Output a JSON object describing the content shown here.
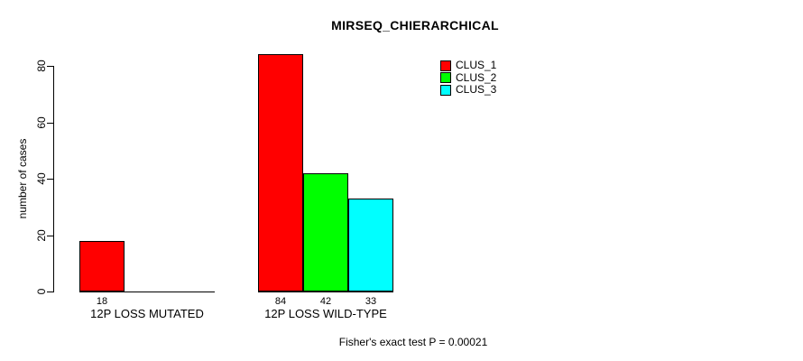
{
  "chart_data": {
    "type": "bar",
    "title": "MIRSEQ_CHIERARCHICAL",
    "ylabel": "number of cases",
    "xlabel": "",
    "yticks": [
      0,
      20,
      40,
      60,
      80
    ],
    "ylim": [
      0,
      84
    ],
    "grid": false,
    "legend_position": "top-right",
    "categories": [
      "12P LOSS MUTATED",
      "12P LOSS WILD-TYPE"
    ],
    "series": [
      {
        "name": "CLUS_1",
        "color": "#ff0000",
        "values": [
          18,
          84
        ]
      },
      {
        "name": "CLUS_2",
        "color": "#00ff00",
        "values": [
          0,
          42
        ]
      },
      {
        "name": "CLUS_3",
        "color": "#00ffff",
        "values": [
          0,
          33
        ]
      }
    ],
    "annotation": "Fisher's exact test P = 0.00021"
  }
}
